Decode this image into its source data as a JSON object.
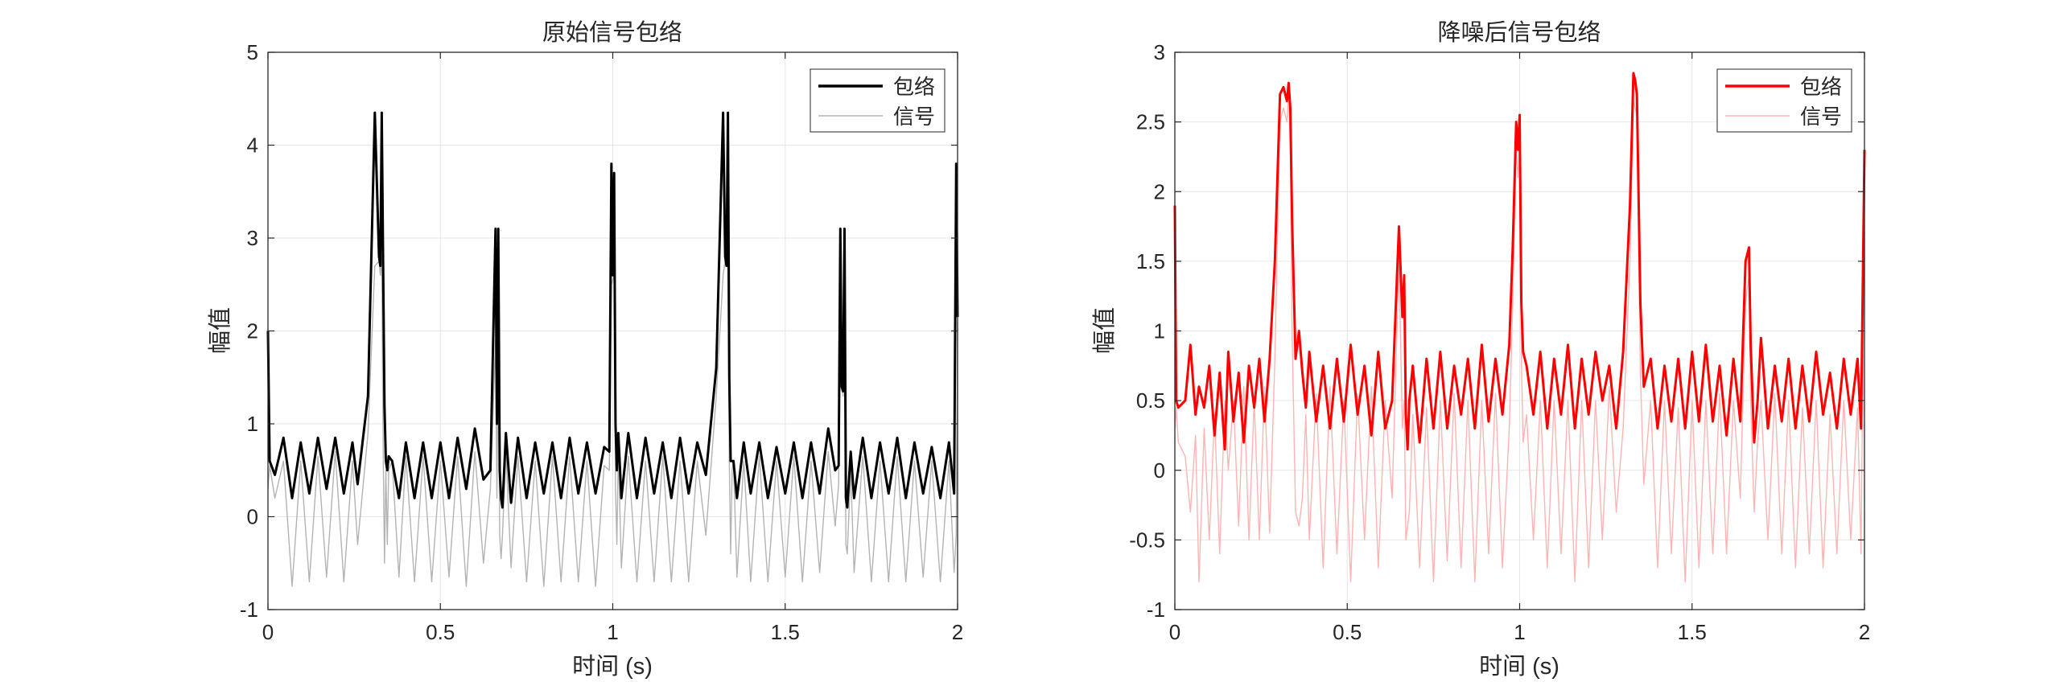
{
  "chart_data": [
    {
      "type": "line",
      "title": "原始信号包络",
      "xlabel": "时间 (s)",
      "ylabel": "幅值",
      "xlim": [
        0,
        2
      ],
      "ylim": [
        -1,
        5
      ],
      "xticks": [
        0,
        0.5,
        1,
        1.5,
        2
      ],
      "xtick_labels": [
        "0",
        "0.5",
        "1",
        "1.5",
        "2"
      ],
      "yticks": [
        -1,
        0,
        1,
        2,
        3,
        4,
        5
      ],
      "ytick_labels": [
        "-1",
        "0",
        "1",
        "2",
        "3",
        "4",
        "5"
      ],
      "grid": true,
      "legend_position": "top-right",
      "series": [
        {
          "name": "包络",
          "color": "#000000",
          "x": [
            0,
            0.005,
            0.02,
            0.045,
            0.07,
            0.095,
            0.12,
            0.145,
            0.17,
            0.195,
            0.22,
            0.245,
            0.26,
            0.29,
            0.31,
            0.322,
            0.326,
            0.33,
            0.334,
            0.338,
            0.342,
            0.346,
            0.35,
            0.36,
            0.38,
            0.4,
            0.425,
            0.45,
            0.475,
            0.5,
            0.525,
            0.55,
            0.575,
            0.6,
            0.625,
            0.645,
            0.66,
            0.664,
            0.668,
            0.672,
            0.676,
            0.68,
            0.69,
            0.705,
            0.725,
            0.75,
            0.775,
            0.8,
            0.825,
            0.85,
            0.875,
            0.9,
            0.925,
            0.95,
            0.975,
            0.99,
            0.996,
            1.0,
            1.004,
            1.008,
            1.012,
            1.016,
            1.025,
            1.045,
            1.07,
            1.095,
            1.12,
            1.145,
            1.17,
            1.195,
            1.22,
            1.245,
            1.27,
            1.3,
            1.32,
            1.326,
            1.33,
            1.334,
            1.338,
            1.342,
            1.346,
            1.35,
            1.36,
            1.38,
            1.4,
            1.425,
            1.45,
            1.475,
            1.5,
            1.525,
            1.55,
            1.575,
            1.6,
            1.625,
            1.645,
            1.655,
            1.66,
            1.664,
            1.668,
            1.672,
            1.676,
            1.68,
            1.69,
            1.7,
            1.725,
            1.75,
            1.775,
            1.8,
            1.825,
            1.85,
            1.875,
            1.9,
            1.925,
            1.95,
            1.975,
            1.99,
            1.996,
            2.0
          ],
          "y": [
            2.0,
            0.6,
            0.45,
            0.85,
            0.2,
            0.8,
            0.25,
            0.85,
            0.3,
            0.85,
            0.25,
            0.8,
            0.35,
            1.3,
            4.35,
            2.8,
            2.7,
            4.35,
            2.75,
            1.2,
            0.6,
            0.5,
            0.65,
            0.6,
            0.2,
            0.8,
            0.2,
            0.8,
            0.2,
            0.8,
            0.2,
            0.85,
            0.3,
            0.95,
            0.4,
            0.5,
            3.1,
            1.0,
            3.1,
            0.5,
            0.2,
            0.1,
            0.9,
            0.15,
            0.85,
            0.2,
            0.8,
            0.25,
            0.8,
            0.2,
            0.85,
            0.25,
            0.8,
            0.25,
            0.75,
            0.7,
            3.8,
            2.6,
            3.7,
            1.0,
            0.5,
            0.9,
            0.2,
            0.9,
            0.2,
            0.85,
            0.25,
            0.8,
            0.2,
            0.85,
            0.25,
            0.8,
            0.45,
            1.6,
            4.35,
            2.8,
            2.7,
            4.35,
            1.5,
            0.6,
            0.6,
            0.6,
            0.2,
            0.8,
            0.25,
            0.8,
            0.2,
            0.75,
            0.25,
            0.8,
            0.2,
            0.8,
            0.25,
            0.95,
            0.5,
            0.55,
            3.1,
            1.4,
            1.35,
            3.1,
            0.2,
            0.1,
            0.7,
            0.2,
            0.85,
            0.2,
            0.8,
            0.25,
            0.85,
            0.2,
            0.8,
            0.25,
            0.75,
            0.2,
            0.8,
            0.25,
            3.8,
            2.15
          ]
        },
        {
          "name": "信号",
          "color": "#b3b3b3",
          "x": [
            0,
            0.005,
            0.02,
            0.045,
            0.07,
            0.095,
            0.12,
            0.145,
            0.17,
            0.195,
            0.22,
            0.245,
            0.26,
            0.29,
            0.31,
            0.322,
            0.326,
            0.33,
            0.334,
            0.338,
            0.342,
            0.346,
            0.35,
            0.36,
            0.38,
            0.4,
            0.425,
            0.45,
            0.475,
            0.5,
            0.525,
            0.55,
            0.575,
            0.6,
            0.625,
            0.645,
            0.66,
            0.664,
            0.668,
            0.672,
            0.676,
            0.68,
            0.69,
            0.705,
            0.725,
            0.75,
            0.775,
            0.8,
            0.825,
            0.85,
            0.875,
            0.9,
            0.925,
            0.95,
            0.975,
            0.99,
            0.996,
            1.0,
            1.004,
            1.008,
            1.012,
            1.016,
            1.025,
            1.045,
            1.07,
            1.095,
            1.12,
            1.145,
            1.17,
            1.195,
            1.22,
            1.245,
            1.27,
            1.3,
            1.32,
            1.326,
            1.33,
            1.334,
            1.338,
            1.342,
            1.346,
            1.35,
            1.36,
            1.38,
            1.4,
            1.425,
            1.45,
            1.475,
            1.5,
            1.525,
            1.55,
            1.575,
            1.6,
            1.625,
            1.645,
            1.655,
            1.66,
            1.664,
            1.668,
            1.672,
            1.676,
            1.68,
            1.69,
            1.7,
            1.725,
            1.75,
            1.775,
            1.8,
            1.825,
            1.85,
            1.875,
            1.9,
            1.925,
            1.95,
            1.975,
            1.99,
            1.996,
            2.0
          ],
          "y": [
            0.3,
            0.55,
            0.2,
            0.6,
            -0.75,
            0.6,
            -0.7,
            0.65,
            -0.65,
            0.7,
            -0.7,
            0.6,
            -0.3,
            0.9,
            2.7,
            2.75,
            2.6,
            2.8,
            0.8,
            -0.5,
            0.5,
            -0.3,
            0.5,
            0.6,
            -0.65,
            0.65,
            -0.7,
            0.65,
            -0.7,
            0.6,
            -0.65,
            0.65,
            -0.75,
            0.7,
            -0.5,
            0.3,
            1.9,
            0.2,
            1.95,
            -0.2,
            -0.45,
            -0.2,
            0.7,
            -0.55,
            0.65,
            -0.7,
            0.6,
            -0.75,
            0.65,
            -0.7,
            0.65,
            -0.7,
            0.6,
            -0.75,
            0.55,
            0.5,
            2.5,
            2.55,
            2.6,
            0.3,
            -0.3,
            0.7,
            -0.55,
            0.65,
            -0.7,
            0.6,
            -0.7,
            0.65,
            -0.7,
            0.6,
            -0.7,
            0.6,
            -0.2,
            1.3,
            2.6,
            2.75,
            2.7,
            2.8,
            0.6,
            -0.4,
            0.5,
            0.6,
            -0.65,
            0.6,
            -0.7,
            0.65,
            -0.7,
            0.6,
            -0.65,
            0.65,
            -0.7,
            0.6,
            -0.6,
            0.7,
            -0.1,
            0.35,
            2.8,
            1.5,
            1.3,
            2.7,
            -0.3,
            -0.4,
            0.5,
            -0.6,
            0.65,
            -0.7,
            0.6,
            -0.7,
            0.65,
            -0.7,
            0.6,
            -0.65,
            0.6,
            -0.7,
            0.6,
            -0.6,
            -0.2,
            2.1
          ]
        }
      ]
    },
    {
      "type": "line",
      "title": "降噪后信号包络",
      "xlabel": "时间 (s)",
      "ylabel": "幅值",
      "xlim": [
        0,
        2
      ],
      "ylim": [
        -1,
        3
      ],
      "xticks": [
        0,
        0.5,
        1,
        1.5,
        2
      ],
      "xtick_labels": [
        "0",
        "0.5",
        "1",
        "1.5",
        "2"
      ],
      "yticks": [
        -1,
        -0.5,
        0,
        0.5,
        1,
        1.5,
        2,
        2.5,
        3
      ],
      "ytick_labels": [
        "-1",
        "-0.5",
        "0",
        "0.5",
        "1",
        "1.5",
        "2",
        "2.5",
        "3"
      ],
      "grid": true,
      "legend_position": "top-right",
      "series": [
        {
          "name": "包络",
          "color": "#ff0000",
          "x": [
            0,
            0.004,
            0.01,
            0.03,
            0.045,
            0.06,
            0.07,
            0.085,
            0.1,
            0.115,
            0.13,
            0.145,
            0.155,
            0.17,
            0.185,
            0.2,
            0.215,
            0.23,
            0.245,
            0.26,
            0.275,
            0.29,
            0.305,
            0.315,
            0.325,
            0.33,
            0.335,
            0.34,
            0.35,
            0.36,
            0.37,
            0.38,
            0.39,
            0.41,
            0.43,
            0.45,
            0.47,
            0.49,
            0.51,
            0.53,
            0.55,
            0.57,
            0.59,
            0.61,
            0.63,
            0.65,
            0.66,
            0.665,
            0.67,
            0.675,
            0.68,
            0.69,
            0.71,
            0.73,
            0.75,
            0.77,
            0.79,
            0.81,
            0.83,
            0.85,
            0.87,
            0.89,
            0.91,
            0.93,
            0.95,
            0.97,
            0.98,
            0.99,
            0.995,
            1.0,
            1.005,
            1.01,
            1.02,
            1.04,
            1.06,
            1.08,
            1.1,
            1.12,
            1.14,
            1.16,
            1.18,
            1.2,
            1.22,
            1.24,
            1.26,
            1.28,
            1.3,
            1.32,
            1.33,
            1.335,
            1.34,
            1.35,
            1.36,
            1.38,
            1.4,
            1.42,
            1.44,
            1.46,
            1.48,
            1.5,
            1.52,
            1.54,
            1.56,
            1.58,
            1.6,
            1.62,
            1.64,
            1.655,
            1.665,
            1.67,
            1.68,
            1.69,
            1.7,
            1.72,
            1.74,
            1.76,
            1.78,
            1.8,
            1.82,
            1.84,
            1.86,
            1.88,
            1.9,
            1.92,
            1.94,
            1.96,
            1.98,
            1.99,
            2.0
          ],
          "y": [
            1.9,
            0.5,
            0.45,
            0.5,
            0.9,
            0.4,
            0.6,
            0.45,
            0.75,
            0.25,
            0.7,
            0.15,
            0.85,
            0.35,
            0.7,
            0.2,
            0.75,
            0.45,
            0.8,
            0.35,
            0.8,
            1.5,
            2.7,
            2.75,
            2.65,
            2.78,
            2.6,
            1.8,
            0.8,
            1.0,
            0.7,
            0.45,
            0.85,
            0.35,
            0.75,
            0.3,
            0.8,
            0.35,
            0.9,
            0.4,
            0.75,
            0.25,
            0.85,
            0.3,
            0.5,
            1.75,
            1.1,
            1.4,
            0.4,
            0.15,
            0.5,
            0.75,
            0.2,
            0.8,
            0.3,
            0.85,
            0.3,
            0.75,
            0.4,
            0.8,
            0.3,
            0.9,
            0.35,
            0.8,
            0.4,
            0.9,
            1.6,
            2.5,
            2.3,
            2.55,
            1.2,
            0.85,
            0.75,
            0.4,
            0.85,
            0.3,
            0.8,
            0.4,
            0.9,
            0.3,
            0.8,
            0.4,
            0.85,
            0.5,
            0.75,
            0.3,
            0.85,
            1.9,
            2.85,
            2.8,
            2.7,
            1.2,
            0.6,
            0.8,
            0.3,
            0.75,
            0.35,
            0.8,
            0.3,
            0.85,
            0.35,
            0.9,
            0.35,
            0.75,
            0.25,
            0.8,
            0.35,
            1.5,
            1.6,
            0.9,
            0.2,
            0.5,
            0.95,
            0.3,
            0.75,
            0.35,
            0.8,
            0.3,
            0.75,
            0.35,
            0.85,
            0.4,
            0.7,
            0.3,
            0.8,
            0.4,
            0.8,
            0.3,
            2.3
          ]
        },
        {
          "name": "信号",
          "color": "#ffb3b3",
          "x": [
            0,
            0.004,
            0.01,
            0.03,
            0.045,
            0.06,
            0.07,
            0.085,
            0.1,
            0.115,
            0.13,
            0.145,
            0.155,
            0.17,
            0.185,
            0.2,
            0.215,
            0.23,
            0.245,
            0.26,
            0.275,
            0.29,
            0.305,
            0.315,
            0.325,
            0.33,
            0.335,
            0.34,
            0.35,
            0.36,
            0.37,
            0.38,
            0.39,
            0.41,
            0.43,
            0.45,
            0.47,
            0.49,
            0.51,
            0.53,
            0.55,
            0.57,
            0.59,
            0.61,
            0.63,
            0.65,
            0.66,
            0.665,
            0.67,
            0.675,
            0.68,
            0.69,
            0.71,
            0.73,
            0.75,
            0.77,
            0.79,
            0.81,
            0.83,
            0.85,
            0.87,
            0.89,
            0.91,
            0.93,
            0.95,
            0.97,
            0.98,
            0.99,
            0.995,
            1.0,
            1.005,
            1.01,
            1.02,
            1.04,
            1.06,
            1.08,
            1.1,
            1.12,
            1.14,
            1.16,
            1.18,
            1.2,
            1.22,
            1.24,
            1.26,
            1.28,
            1.3,
            1.32,
            1.33,
            1.335,
            1.34,
            1.35,
            1.36,
            1.38,
            1.4,
            1.42,
            1.44,
            1.46,
            1.48,
            1.5,
            1.52,
            1.54,
            1.56,
            1.58,
            1.6,
            1.62,
            1.64,
            1.655,
            1.665,
            1.67,
            1.68,
            1.69,
            1.7,
            1.72,
            1.74,
            1.76,
            1.78,
            1.8,
            1.82,
            1.84,
            1.86,
            1.88,
            1.9,
            1.92,
            1.94,
            1.96,
            1.98,
            1.99,
            2.0
          ],
          "y": [
            0.3,
            0.45,
            0.2,
            0.1,
            -0.3,
            0.25,
            -0.8,
            0.3,
            -0.5,
            0.4,
            -0.6,
            0.5,
            0.0,
            0.5,
            -0.4,
            0.6,
            -0.5,
            0.5,
            -0.5,
            0.6,
            -0.45,
            0.8,
            2.5,
            2.6,
            2.5,
            2.7,
            2.3,
            1.0,
            -0.3,
            -0.4,
            -0.2,
            0.4,
            -0.5,
            0.55,
            -0.7,
            0.6,
            -0.6,
            0.5,
            -0.8,
            0.55,
            -0.5,
            0.6,
            -0.7,
            0.5,
            -0.2,
            1.5,
            0.3,
            0.5,
            -0.5,
            -0.4,
            -0.3,
            0.4,
            -0.7,
            0.45,
            -0.8,
            0.5,
            -0.65,
            0.55,
            -0.7,
            0.5,
            -0.8,
            0.5,
            -0.6,
            0.55,
            -0.7,
            0.3,
            1.2,
            2.3,
            2.1,
            2.35,
            0.8,
            0.2,
            0.4,
            -0.5,
            0.5,
            -0.7,
            0.5,
            -0.6,
            0.5,
            -0.8,
            0.5,
            -0.7,
            0.5,
            -0.5,
            0.6,
            -0.3,
            0.3,
            1.5,
            2.65,
            2.6,
            2.55,
            0.7,
            -0.1,
            0.5,
            -0.7,
            0.5,
            -0.6,
            0.45,
            -0.8,
            0.5,
            -0.7,
            0.5,
            -0.6,
            0.55,
            -0.6,
            0.5,
            -0.2,
            1.2,
            1.4,
            0.5,
            -0.3,
            0.2,
            0.5,
            -0.5,
            0.55,
            -0.6,
            0.5,
            -0.7,
            0.45,
            -0.6,
            0.5,
            -0.7,
            0.4,
            -0.6,
            0.5,
            -0.5,
            0.45,
            -0.6,
            1.9
          ]
        }
      ]
    }
  ]
}
